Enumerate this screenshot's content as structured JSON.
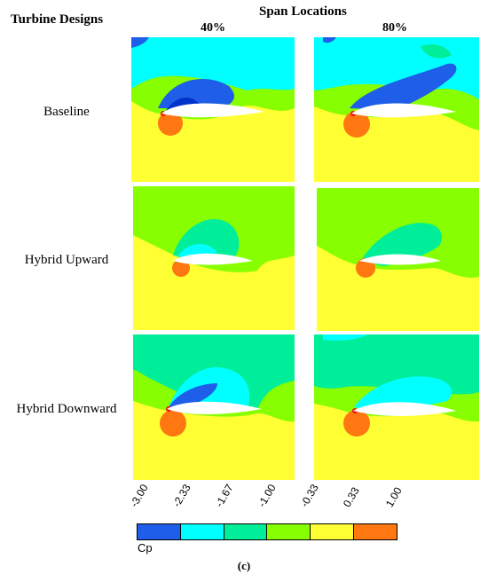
{
  "header": {
    "designs_title": "Turbine Designs",
    "span_title": "Span Locations"
  },
  "columns": [
    "40%",
    "80%"
  ],
  "rows": [
    "Baseline",
    "Hybrid Upward",
    "Hybrid Downward"
  ],
  "colorbar": {
    "label": "Cp",
    "ticks": [
      "-3.00",
      "-2.33",
      "-1.67",
      "-1.00",
      "-0.33",
      "0.33",
      "1.00"
    ],
    "colors": [
      "#1e5ee8",
      "#00ffff",
      "#00ee99",
      "#88ff00",
      "#ffff33",
      "#ff7711"
    ]
  },
  "caption": "(c)"
}
